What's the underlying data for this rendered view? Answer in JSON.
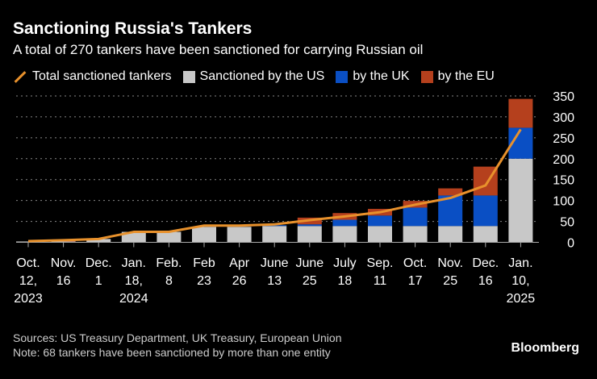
{
  "title": "Sanctioning Russia's Tankers",
  "subtitle": "A total of 270 tankers have been sanctioned for carrying Russian oil",
  "source": "Sources: US Treasury Department, UK Treasury, European Union",
  "note": "Note: 68 tankers have been sanctioned by more than one entity",
  "brand": "Bloomberg",
  "chart_data": {
    "type": "bar",
    "stacked": true,
    "categories": [
      [
        "Oct.",
        "12,",
        "2023"
      ],
      [
        "Nov.",
        "16"
      ],
      [
        "Dec.",
        "1"
      ],
      [
        "Jan.",
        "18,",
        "2024"
      ],
      [
        "Feb.",
        "8"
      ],
      [
        "Feb",
        "23"
      ],
      [
        "Apr",
        "26"
      ],
      [
        "June",
        "13"
      ],
      [
        "June",
        "25"
      ],
      [
        "July",
        "18"
      ],
      [
        "Sep.",
        "11"
      ],
      [
        "Oct.",
        "17"
      ],
      [
        "Nov.",
        "25"
      ],
      [
        "Dec.",
        "16"
      ],
      [
        "Jan.",
        "10,",
        "2025"
      ]
    ],
    "series": [
      {
        "name": "Sanctioned by the US",
        "type": "bar",
        "color": "#c8c8c8",
        "values": [
          2,
          2,
          8,
          25,
          25,
          37,
          37,
          39,
          39,
          39,
          39,
          39,
          39,
          39,
          200
        ]
      },
      {
        "name": "by the UK",
        "type": "bar",
        "color": "#0a4fc4",
        "values": [
          0,
          0,
          0,
          0,
          0,
          0,
          0,
          2,
          4,
          15,
          25,
          44,
          73,
          73,
          74
        ]
      },
      {
        "name": "by the EU",
        "type": "bar",
        "color": "#b5401d",
        "values": [
          0,
          2,
          0,
          0,
          0,
          0,
          0,
          0,
          16,
          16,
          16,
          16,
          17,
          69,
          69
        ]
      },
      {
        "name": "Total sanctioned tankers",
        "type": "line",
        "color": "#e8912c",
        "values": [
          3,
          5,
          8,
          25,
          25,
          40,
          40,
          43,
          53,
          62,
          72,
          90,
          106,
          136,
          270
        ]
      }
    ],
    "yticks": [
      0,
      50,
      100,
      150,
      200,
      250,
      300,
      350
    ],
    "ylim": [
      0,
      350
    ],
    "grid": true,
    "legend": "top",
    "yaxis_side": "right"
  }
}
